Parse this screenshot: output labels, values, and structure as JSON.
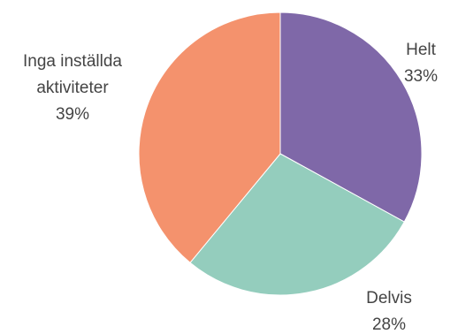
{
  "chart_data": {
    "type": "pie",
    "title": "",
    "slices": [
      {
        "label": "Helt",
        "value": 33,
        "value_label": "33%",
        "color": "#7f68a8"
      },
      {
        "label": "Delvis",
        "value": 28,
        "value_label": "28%",
        "color": "#94cdbd"
      },
      {
        "label_lines": [
          "Inga inställda",
          "aktiviteter"
        ],
        "value": 39,
        "value_label": "39%",
        "color": "#f4926d"
      }
    ],
    "start_angle": "top",
    "direction": "clockwise",
    "legend": "none"
  }
}
